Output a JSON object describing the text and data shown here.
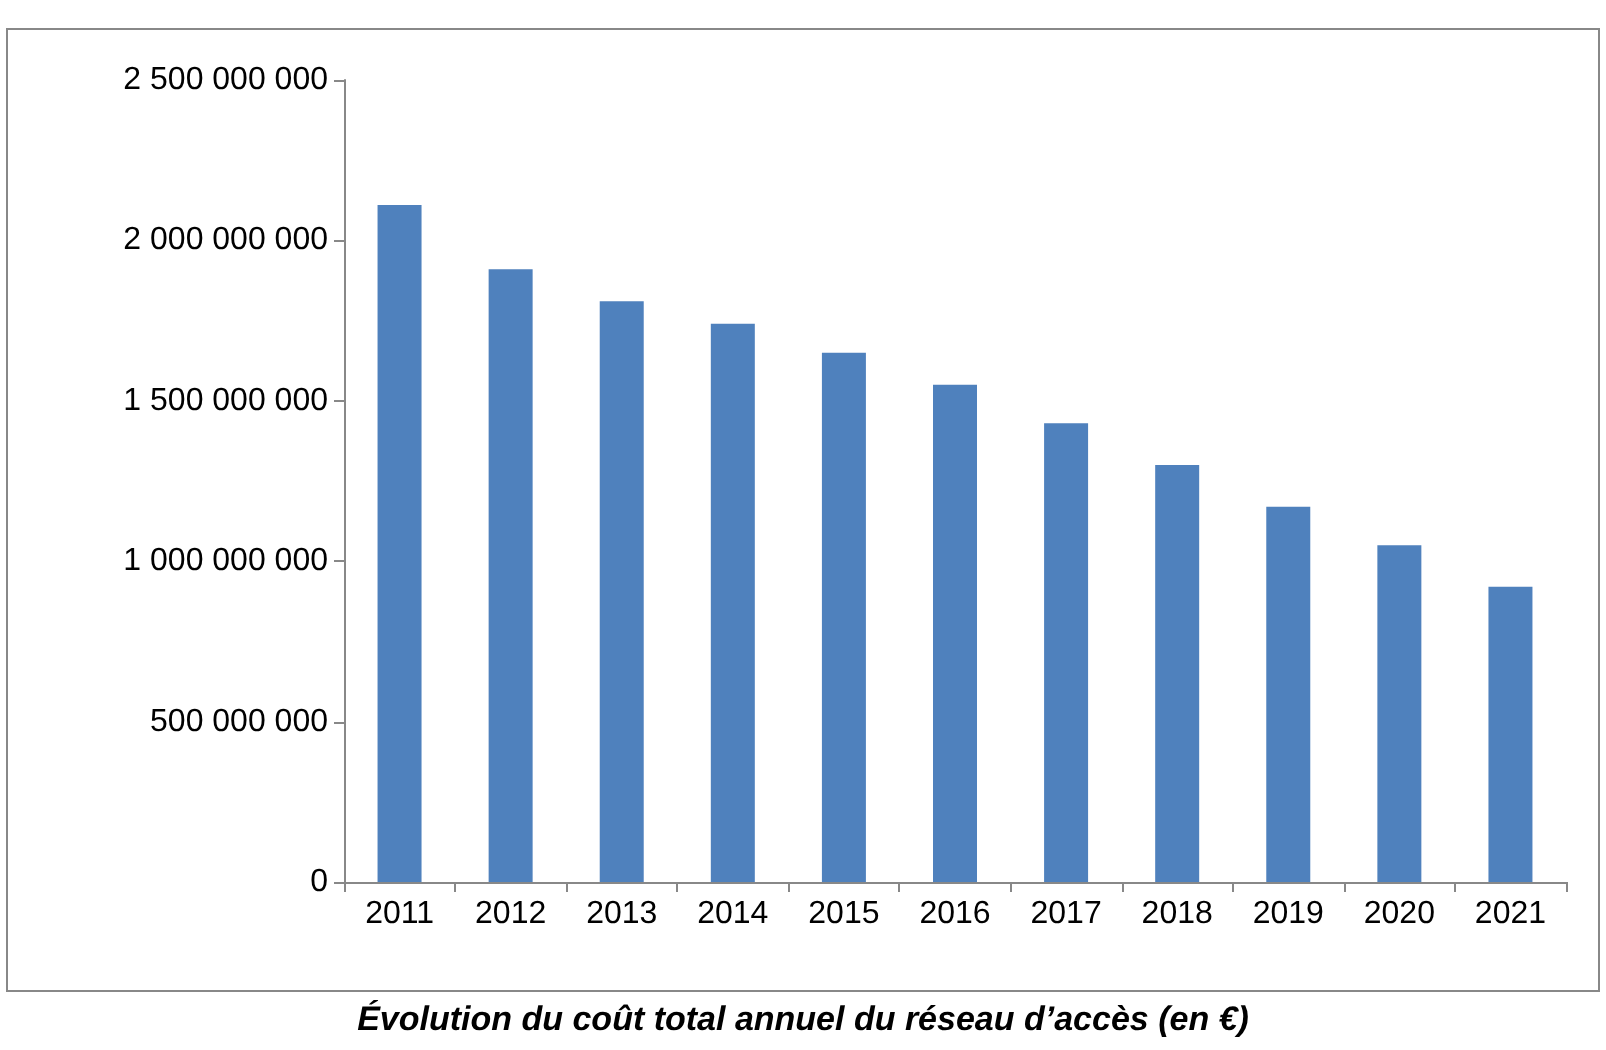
{
  "chart_data": {
    "type": "bar",
    "title": "Évolution du coût total annuel du réseau d’accès (en €)",
    "categories": [
      "2011",
      "2012",
      "2013",
      "2014",
      "2015",
      "2016",
      "2017",
      "2018",
      "2019",
      "2020",
      "2021"
    ],
    "values": [
      2110000000,
      1910000000,
      1810000000,
      1740000000,
      1650000000,
      1550000000,
      1430000000,
      1300000000,
      1170000000,
      1050000000,
      920000000
    ],
    "color": "#4f81bd",
    "ylim": [
      0,
      2500000000
    ],
    "yticks": [
      0,
      {
        "value": 500000000,
        "label": "500 000 000"
      },
      {
        "value": 1000000000,
        "label": "1 000 000 000"
      },
      {
        "value": 1500000000,
        "label": "1 500 000 000"
      },
      {
        "value": 2000000000,
        "label": "2 000 000 000"
      },
      {
        "value": 2500000000,
        "label": "2 500 000 000"
      }
    ],
    "grid": false
  }
}
